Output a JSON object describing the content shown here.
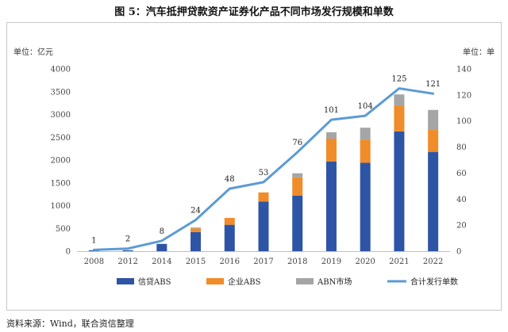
{
  "title": "图 5：汽车抵押贷款资产证券化产品不同市场发行规模和单数",
  "source": "资料来源：Wind，联合资信整理",
  "chart_data": {
    "type": "bar",
    "stacked": true,
    "categories": [
      "2008",
      "2012",
      "2014",
      "2015",
      "2016",
      "2017",
      "2018",
      "2019",
      "2020",
      "2021",
      "2022"
    ],
    "series": [
      {
        "name": "信贷ABS",
        "color": "#2E54A5",
        "values": [
          20,
          20,
          160,
          420,
          580,
          1090,
          1220,
          1970,
          1940,
          2630,
          2180
        ]
      },
      {
        "name": "企业ABS",
        "color": "#F08C2A",
        "values": [
          0,
          0,
          0,
          80,
          150,
          200,
          400,
          500,
          510,
          560,
          480
        ]
      },
      {
        "name": "ABN市场",
        "color": "#A5A5A5",
        "values": [
          0,
          0,
          0,
          20,
          0,
          0,
          90,
          140,
          260,
          250,
          440
        ]
      }
    ],
    "line": {
      "name": "合计发行单数",
      "color": "#5B9BD5",
      "values": [
        1,
        2,
        8,
        24,
        48,
        53,
        76,
        101,
        104,
        125,
        121
      ]
    },
    "yleft": {
      "unit": "单位：亿元",
      "ylim": [
        0,
        4000
      ],
      "ticks": [
        "0",
        "500",
        "1000",
        "1500",
        "2000",
        "2500",
        "3000",
        "3500",
        "4000"
      ]
    },
    "yright": {
      "unit": "单位：单",
      "ylim": [
        0,
        140
      ],
      "ticks": [
        "0",
        "20",
        "40",
        "60",
        "80",
        "100",
        "120",
        "140"
      ]
    },
    "legend_position": "bottom"
  }
}
